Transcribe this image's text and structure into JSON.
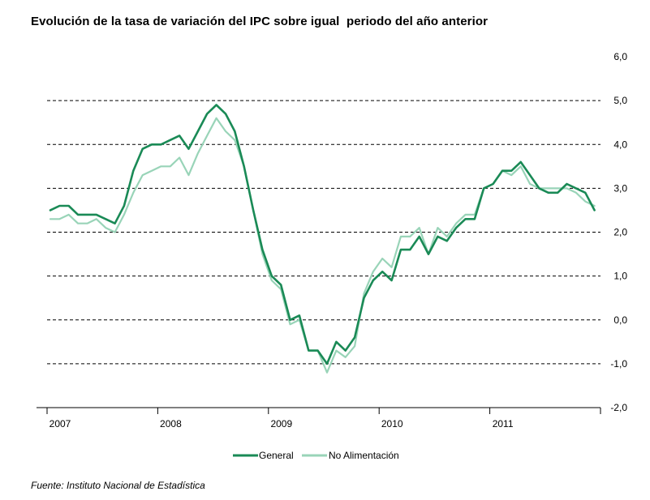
{
  "source": "Fuente: Instituto Nacional de Estadística",
  "chart_data": {
    "type": "line",
    "title": "Evolución de la tasa de variación del IPC sobre igual  periodo del año anterior",
    "xlabel": "",
    "ylabel": "",
    "ylim": [
      -2.0,
      6.0
    ],
    "yticks": [
      "6,0",
      "5,0",
      "4,0",
      "3,0",
      "2,0",
      "1,0",
      "0,0",
      "-1,0",
      "-2,0"
    ],
    "ytick_values": [
      6,
      5,
      4,
      3,
      2,
      1,
      0,
      -1,
      -2
    ],
    "xticks": [
      "2007",
      "2008",
      "2009",
      "2010",
      "2011"
    ],
    "x_start": "2007-01",
    "x_end": "2011-12",
    "grid": "horizontal dashed",
    "legend_position": "bottom-center",
    "series": [
      {
        "name": "General",
        "color": "#1a8a56",
        "values": [
          2.5,
          2.6,
          2.6,
          2.4,
          2.4,
          2.4,
          2.3,
          2.2,
          2.6,
          3.4,
          3.9,
          4.0,
          4.0,
          4.1,
          4.2,
          3.9,
          4.3,
          4.7,
          4.9,
          4.7,
          4.3,
          3.5,
          2.5,
          1.6,
          1.0,
          0.8,
          0.0,
          0.1,
          -0.7,
          -0.7,
          -1.0,
          -0.5,
          -0.7,
          -0.4,
          0.5,
          0.9,
          1.1,
          0.9,
          1.6,
          1.6,
          1.9,
          1.5,
          1.9,
          1.8,
          2.1,
          2.3,
          2.3,
          3.0,
          3.1,
          3.4,
          3.4,
          3.6,
          3.3,
          3.0,
          2.9,
          2.9,
          3.1,
          3.0,
          2.9,
          2.5
        ]
      },
      {
        "name": "No Alimentación",
        "color": "#99d4b8",
        "values": [
          2.3,
          2.3,
          2.4,
          2.2,
          2.2,
          2.3,
          2.1,
          2.0,
          2.4,
          2.9,
          3.3,
          3.4,
          3.5,
          3.5,
          3.7,
          3.3,
          3.8,
          4.2,
          4.6,
          4.3,
          4.1,
          3.5,
          2.5,
          1.5,
          0.9,
          0.7,
          -0.1,
          0.0,
          -0.7,
          -0.7,
          -1.2,
          -0.7,
          -0.85,
          -0.6,
          0.6,
          1.1,
          1.4,
          1.2,
          1.9,
          1.9,
          2.1,
          1.5,
          2.1,
          1.9,
          2.2,
          2.4,
          2.4,
          3.0,
          3.1,
          3.4,
          3.3,
          3.5,
          3.1,
          3.0,
          3.0,
          3.0,
          3.0,
          2.9,
          2.7,
          2.6
        ]
      }
    ]
  }
}
